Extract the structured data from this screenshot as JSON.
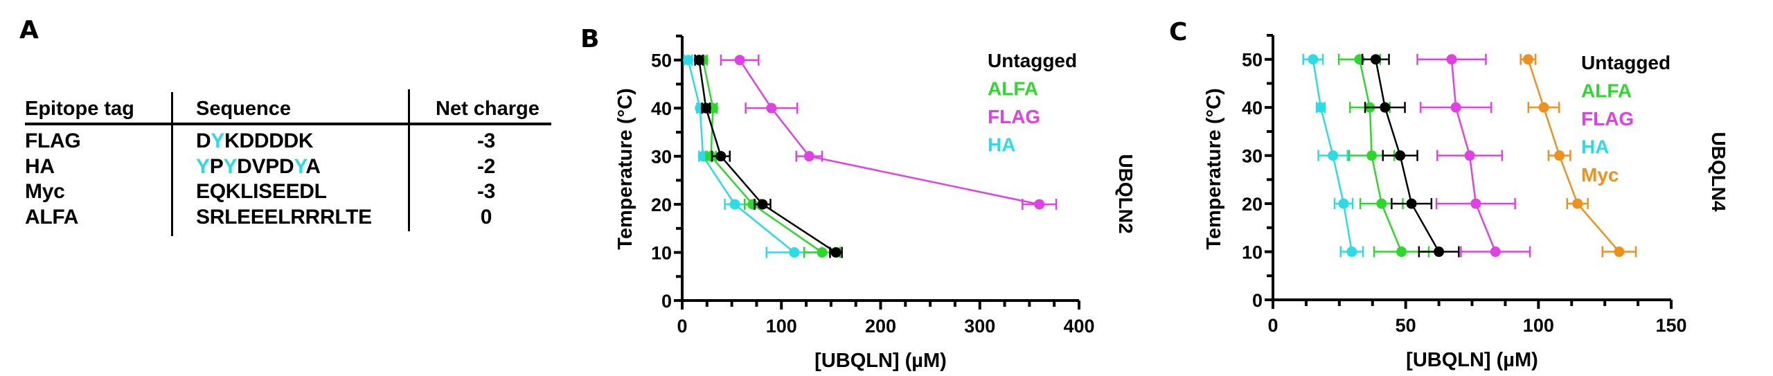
{
  "panels": {
    "a": {
      "letter": "A"
    },
    "b": {
      "letter": "B"
    },
    "c": {
      "letter": "C"
    }
  },
  "table": {
    "headers": [
      "Epitope tag",
      "Sequence",
      "Net charge"
    ],
    "rows": [
      {
        "tag": "FLAG",
        "sequence": [
          {
            "t": "D",
            "hl": false
          },
          {
            "t": "Y",
            "hl": true
          },
          {
            "t": "KDDDDK",
            "hl": false
          }
        ],
        "charge": "-3"
      },
      {
        "tag": "HA",
        "sequence": [
          {
            "t": "Y",
            "hl": true
          },
          {
            "t": "P",
            "hl": false
          },
          {
            "t": "Y",
            "hl": true
          },
          {
            "t": "DVPD",
            "hl": false
          },
          {
            "t": "Y",
            "hl": true
          },
          {
            "t": "A",
            "hl": false
          }
        ],
        "charge": "-2"
      },
      {
        "tag": "Myc",
        "sequence": [
          {
            "t": "EQKLISEEDL",
            "hl": false
          }
        ],
        "charge": "-3"
      },
      {
        "tag": "ALFA",
        "sequence": [
          {
            "t": "SRLEEELRRRLTE",
            "hl": false
          }
        ],
        "charge": "0"
      }
    ],
    "highlight_color": "#29dce8"
  },
  "colors": {
    "Untagged": "#000000",
    "ALFA": "#2bd92b",
    "FLAG": "#e040e4",
    "HA": "#29dce8",
    "Myc": "#f0901c"
  },
  "chart_data": [
    {
      "type": "line",
      "panel": "B",
      "side_label": "UBQLN2",
      "xlabel": "[UBQLN] (µM)",
      "ylabel": "Temperature (°C)",
      "xlim": [
        0,
        400
      ],
      "ylim": [
        0,
        55
      ],
      "x_ticks": [
        0,
        100,
        200,
        300,
        400
      ],
      "x_minor_step": 25,
      "y_ticks": [
        0,
        10,
        20,
        30,
        40,
        50
      ],
      "y_minor_step": 5,
      "legend": [
        "Untagged",
        "ALFA",
        "FLAG",
        "HA"
      ],
      "legend_position": "top-right",
      "orientation": "x-value-vs-y-temperature",
      "series": [
        {
          "name": "Untagged",
          "points": [
            {
              "temp": 10,
              "conc": 155,
              "err": 6
            },
            {
              "temp": 20,
              "conc": 81,
              "err": 8
            },
            {
              "temp": 30,
              "conc": 39,
              "err": 9
            },
            {
              "temp": 40,
              "conc": 24,
              "err": 4
            },
            {
              "temp": 50,
              "conc": 17,
              "err": 4
            }
          ]
        },
        {
          "name": "ALFA",
          "points": [
            {
              "temp": 10,
              "conc": 141,
              "err": 18
            },
            {
              "temp": 20,
              "conc": 71,
              "err": 8
            },
            {
              "temp": 30,
              "conc": 29,
              "err": 5
            },
            {
              "temp": 40,
              "conc": 31,
              "err": 4
            },
            {
              "temp": 50,
              "conc": 21,
              "err": 4
            }
          ]
        },
        {
          "name": "FLAG",
          "points": [
            {
              "temp": 20,
              "conc": 360,
              "err": 17
            },
            {
              "temp": 30,
              "conc": 128,
              "err": 13
            },
            {
              "temp": 40,
              "conc": 90,
              "err": 26
            },
            {
              "temp": 50,
              "conc": 58,
              "err": 19
            }
          ]
        },
        {
          "name": "HA",
          "points": [
            {
              "temp": 10,
              "conc": 113,
              "err": 28
            },
            {
              "temp": 20,
              "conc": 53,
              "err": 10
            },
            {
              "temp": 30,
              "conc": 21,
              "err": 4
            },
            {
              "temp": 40,
              "conc": 18,
              "err": 3
            },
            {
              "temp": 50,
              "conc": 6,
              "err": 4
            }
          ]
        }
      ]
    },
    {
      "type": "line",
      "panel": "C",
      "side_label": "UBQLN4",
      "xlabel": "[UBQLN] (µM)",
      "ylabel": "Temperature (°C)",
      "xlim": [
        0,
        150
      ],
      "ylim": [
        0,
        55
      ],
      "x_ticks": [
        0,
        50,
        100,
        150
      ],
      "x_minor_step": 12.5,
      "y_ticks": [
        0,
        10,
        20,
        30,
        40,
        50
      ],
      "y_minor_step": 5,
      "legend": [
        "Untagged",
        "ALFA",
        "FLAG",
        "HA",
        "Myc"
      ],
      "legend_position": "top-right",
      "orientation": "x-value-vs-y-temperature",
      "series": [
        {
          "name": "Untagged",
          "points": [
            {
              "temp": 10,
              "conc": 62.5,
              "err": 7.5
            },
            {
              "temp": 20,
              "conc": 52.2,
              "err": 7.5
            },
            {
              "temp": 30,
              "conc": 47.9,
              "err": 6.5
            },
            {
              "temp": 40,
              "conc": 42.2,
              "err": 7.5
            },
            {
              "temp": 50,
              "conc": 38.7,
              "err": 5
            }
          ]
        },
        {
          "name": "ALFA",
          "points": [
            {
              "temp": 10,
              "conc": 48.4,
              "err": 10.3
            },
            {
              "temp": 20,
              "conc": 40.9,
              "err": 8
            },
            {
              "temp": 30,
              "conc": 37.2,
              "err": 8.5
            },
            {
              "temp": 40,
              "conc": 36.5,
              "err": 7.5
            },
            {
              "temp": 50,
              "conc": 32.6,
              "err": 7.8
            }
          ]
        },
        {
          "name": "FLAG",
          "points": [
            {
              "temp": 10,
              "conc": 83.8,
              "err": 13
            },
            {
              "temp": 20,
              "conc": 76.4,
              "err": 14.8
            },
            {
              "temp": 30,
              "conc": 74.1,
              "err": 12.2
            },
            {
              "temp": 40,
              "conc": 68.9,
              "err": 13.3
            },
            {
              "temp": 50,
              "conc": 67.3,
              "err": 12.9
            }
          ]
        },
        {
          "name": "HA",
          "points": [
            {
              "temp": 10,
              "conc": 29.7,
              "err": 4.2
            },
            {
              "temp": 20,
              "conc": 26.6,
              "err": 3.4
            },
            {
              "temp": 30,
              "conc": 22.6,
              "err": 5.5
            },
            {
              "temp": 40,
              "conc": 18,
              "err": 1.5
            },
            {
              "temp": 50,
              "conc": 15.1,
              "err": 3.7
            }
          ]
        },
        {
          "name": "Myc",
          "points": [
            {
              "temp": 10,
              "conc": 130.4,
              "err": 6.3
            },
            {
              "temp": 20,
              "conc": 114.7,
              "err": 3.9
            },
            {
              "temp": 30,
              "conc": 107.9,
              "err": 4.1
            },
            {
              "temp": 40,
              "conc": 102,
              "err": 5.8
            },
            {
              "temp": 50,
              "conc": 96.1,
              "err": 2.8
            }
          ]
        }
      ]
    }
  ]
}
